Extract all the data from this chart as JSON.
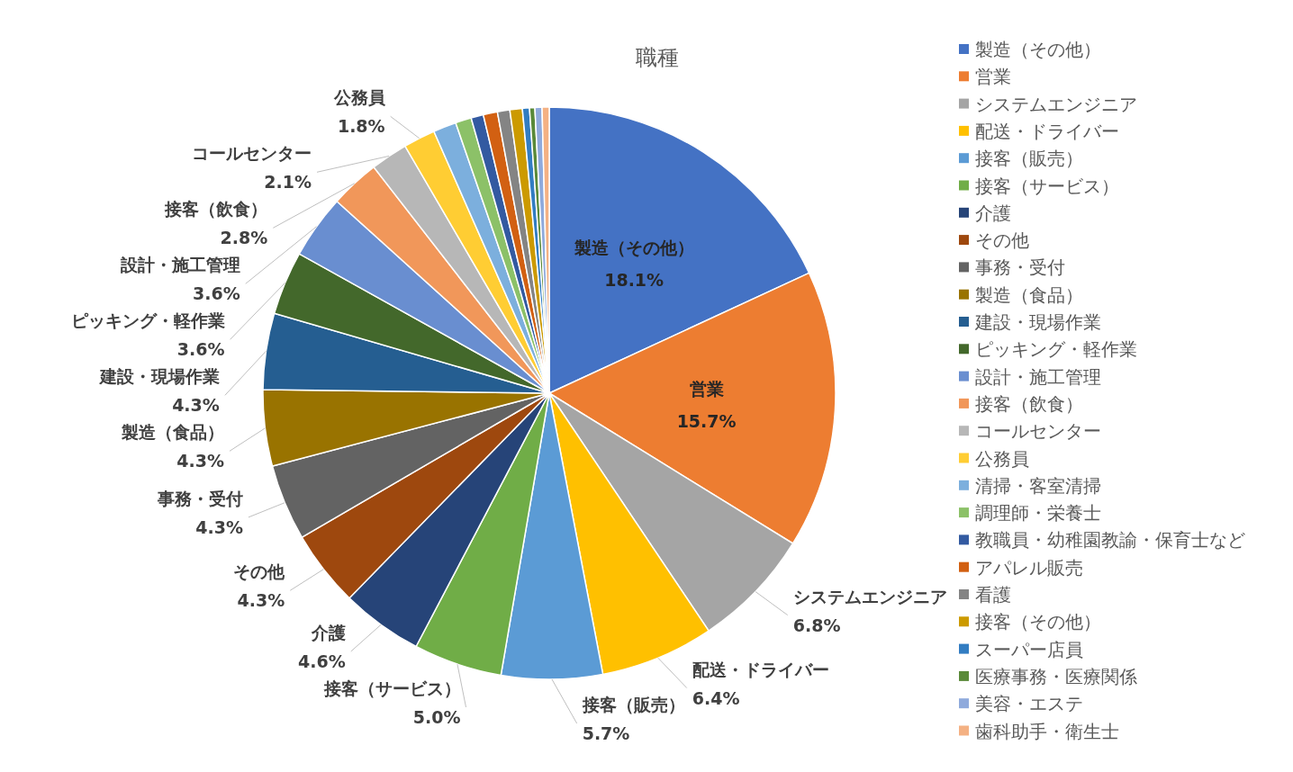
{
  "chart_data": {
    "type": "pie",
    "title": "職種",
    "legend": "right",
    "categories": [
      "製造（その他）",
      "営業",
      "システムエンジニア",
      "配送・ドライバー",
      "接客（販売）",
      "接客（サービス）",
      "介護",
      "その他",
      "事務・受付",
      "製造（食品）",
      "建設・現場作業",
      "ピッキング・軽作業",
      "設計・施工管理",
      "接客（飲食）",
      "コールセンター",
      "公務員",
      "清掃・客室清掃",
      "調理師・栄養士",
      "教職員・幼稚園教諭・保育士など",
      "アパレル販売",
      "看護",
      "接客（その他）",
      "スーパー店員",
      "医療事務・医療関係",
      "美容・エステ",
      "歯科助手・衛生士"
    ],
    "values": [
      18.1,
      15.7,
      6.8,
      6.4,
      5.7,
      5.0,
      4.6,
      4.3,
      4.3,
      4.3,
      4.3,
      3.6,
      3.6,
      2.8,
      2.1,
      1.8,
      1.3,
      0.9,
      0.7,
      0.8,
      0.7,
      0.7,
      0.4,
      0.3,
      0.4,
      0.4
    ],
    "value_labels": [
      "18.1%",
      "15.7%",
      "6.8%",
      "6.4%",
      "5.7%",
      "5.0%",
      "4.6%",
      "4.3%",
      "4.3%",
      "4.3%",
      "4.3%",
      "3.6%",
      "3.6%",
      "2.8%",
      "2.1%",
      "1.8%",
      null,
      null,
      null,
      null,
      null,
      null,
      null,
      null,
      null,
      null
    ],
    "colors": [
      "#4472c4",
      "#ed7d31",
      "#a5a5a5",
      "#ffc000",
      "#5b9bd5",
      "#70ad47",
      "#264478",
      "#9e480e",
      "#636363",
      "#997300",
      "#255e91",
      "#43682b",
      "#698ed0",
      "#f1975a",
      "#b7b7b7",
      "#ffcd33",
      "#7cafdd",
      "#8cc168",
      "#335aa1",
      "#d26012",
      "#848484",
      "#cc9a00",
      "#327dc2",
      "#5a8a39",
      "#8faadc",
      "#f4b183"
    ]
  }
}
